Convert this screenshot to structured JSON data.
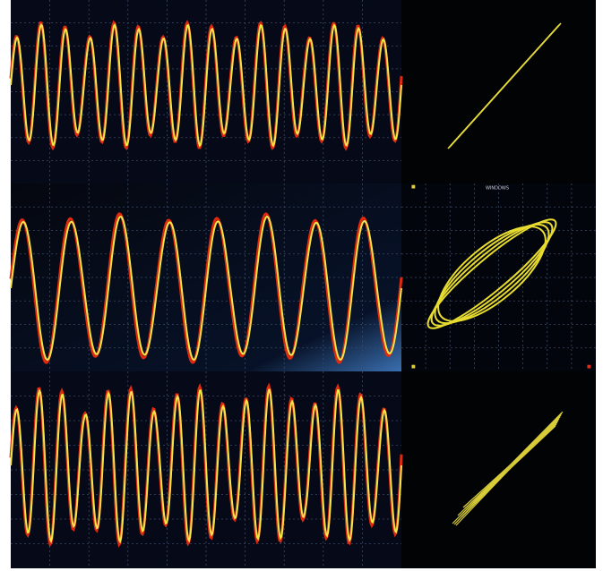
{
  "panels": {
    "xy_middle": {
      "label": "WINDOWS"
    }
  }
}
